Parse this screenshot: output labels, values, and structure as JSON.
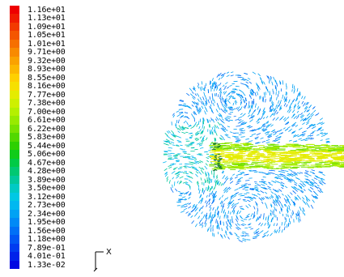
{
  "legend": {
    "levels": [
      {
        "label": "1.16e+01",
        "color": "#ee0000"
      },
      {
        "label": "1.13e+01",
        "color": "#f01c00"
      },
      {
        "label": "1.09e+01",
        "color": "#f23a00"
      },
      {
        "label": "1.05e+01",
        "color": "#f45600"
      },
      {
        "label": "1.01e+01",
        "color": "#f67000"
      },
      {
        "label": "9.71e+00",
        "color": "#f88a00"
      },
      {
        "label": "9.32e+00",
        "color": "#faa200"
      },
      {
        "label": "8.93e+00",
        "color": "#fcb800"
      },
      {
        "label": "8.55e+00",
        "color": "#fed000"
      },
      {
        "label": "8.16e+00",
        "color": "#f6e000"
      },
      {
        "label": "7.77e+00",
        "color": "#e4ec00"
      },
      {
        "label": "7.38e+00",
        "color": "#cef000"
      },
      {
        "label": "7.00e+00",
        "color": "#b4f000"
      },
      {
        "label": "6.61e+00",
        "color": "#98ea00"
      },
      {
        "label": "6.22e+00",
        "color": "#78e200"
      },
      {
        "label": "5.83e+00",
        "color": "#52d800"
      },
      {
        "label": "5.44e+00",
        "color": "#2ed000"
      },
      {
        "label": "5.06e+00",
        "color": "#10cc1a"
      },
      {
        "label": "4.67e+00",
        "color": "#00ca46"
      },
      {
        "label": "4.28e+00",
        "color": "#00c872"
      },
      {
        "label": "3.89e+00",
        "color": "#00c89c"
      },
      {
        "label": "3.50e+00",
        "color": "#00cac4"
      },
      {
        "label": "3.12e+00",
        "color": "#00c8e4"
      },
      {
        "label": "2.73e+00",
        "color": "#00b8f0"
      },
      {
        "label": "2.34e+00",
        "color": "#00a2f4"
      },
      {
        "label": "1.95e+00",
        "color": "#008af6"
      },
      {
        "label": "1.56e+00",
        "color": "#0070f6"
      },
      {
        "label": "1.18e+00",
        "color": "#0056f4"
      },
      {
        "label": "7.89e-01",
        "color": "#003cf0"
      },
      {
        "label": "4.01e-01",
        "color": "#0022ea"
      },
      {
        "label": "1.33e-02",
        "color": "#0008e2"
      }
    ]
  },
  "axis": {
    "x_label": "X"
  },
  "colors": {
    "background": "#ffffff",
    "jet": "#b4f000",
    "jet_core": "#e4ec00",
    "vectors_low": "#00a2f4",
    "vectors_mid": "#00c89c"
  }
}
